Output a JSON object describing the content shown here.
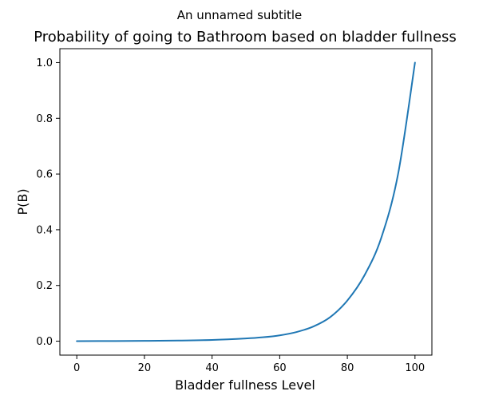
{
  "chart_data": {
    "type": "line",
    "suptitle": "An unnamed subtitle",
    "title": "Probability of going to Bathroom based on bladder fullness",
    "xlabel": "Bladder fullness Level",
    "ylabel": "P(B)",
    "xlim": [
      -5,
      105
    ],
    "ylim": [
      -0.05,
      1.05
    ],
    "xticks": [
      0,
      20,
      40,
      60,
      80,
      100
    ],
    "xtick_labels": [
      "0",
      "20",
      "40",
      "60",
      "80",
      "100"
    ],
    "yticks": [
      0.0,
      0.2,
      0.4,
      0.6,
      0.8,
      1.0
    ],
    "ytick_labels": [
      "0.0",
      "0.2",
      "0.4",
      "0.6",
      "0.8",
      "1.0"
    ],
    "grid": false,
    "series": [
      {
        "color": "#1f77b4",
        "x": [
          0,
          10,
          20,
          30,
          40,
          50,
          55,
          60,
          65,
          70,
          75,
          80,
          85,
          90,
          95,
          100
        ],
        "y": [
          0.0,
          0.0005,
          0.0011,
          0.0022,
          0.0045,
          0.0097,
          0.014,
          0.021,
          0.033,
          0.053,
          0.087,
          0.146,
          0.235,
          0.37,
          0.6,
          1.0
        ]
      }
    ]
  }
}
